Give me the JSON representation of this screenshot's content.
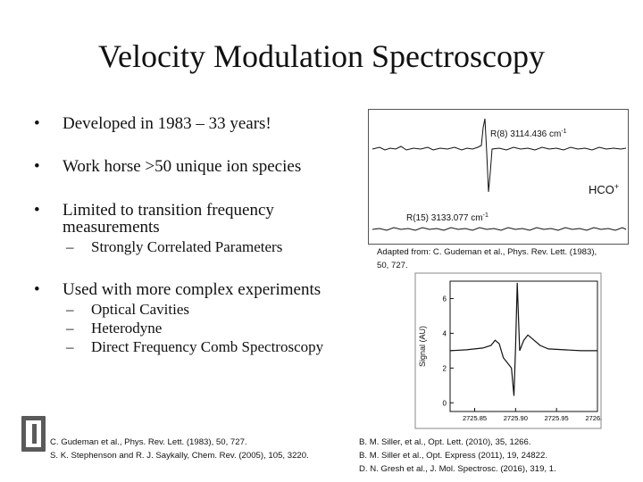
{
  "slide": {
    "title": "Velocity Modulation Spectroscopy",
    "bullets": [
      {
        "mark": "•",
        "text": "Developed in 1983 – 33 years!"
      },
      {
        "mark": "•",
        "text": "Work horse >50 unique ion species"
      },
      {
        "mark": "•",
        "line1": "Limited to transition frequency",
        "line2": "measurements"
      },
      {
        "mark": "•",
        "text": "Used with more complex experiments"
      }
    ],
    "sub_a": [
      {
        "dash": "–",
        "text": "Strongly Correlated Parameters"
      }
    ],
    "sub_b": [
      {
        "dash": "–",
        "text": "Optical Cavities"
      },
      {
        "dash": "–",
        "text": "Heterodyne"
      },
      {
        "dash": "–",
        "text": "Direct Frequency Comb Spectroscopy"
      }
    ]
  },
  "figure_top": {
    "label_upper": "R(8)  3114.436 cm",
    "label_upper_sup": "-1",
    "label_lower": "R(15)  3133.077 cm",
    "label_lower_sup": "-1",
    "species": "HCO",
    "species_sup": "+",
    "caption_line1": "Adapted from: C. Gudeman et al., Phys. Rev. Lett. (1983),",
    "caption_line2": "50, 727."
  },
  "figure_bottom": {
    "ylabel": "Signal (AU)",
    "yticks": [
      "6",
      "4",
      "2",
      "0"
    ],
    "xticks": [
      "2725.85",
      "2725.90",
      "2725.95",
      "2726.00"
    ]
  },
  "chart_data": {
    "type": "line",
    "title": "",
    "xlabel": "",
    "ylabel": "Signal (AU)",
    "xlim": [
      2725.82,
      2726.0
    ],
    "ylim": [
      -0.5,
      7
    ],
    "grid": false,
    "series": [
      {
        "x": [
          2725.82,
          2725.84,
          2725.86,
          2725.87,
          2725.875,
          2725.88,
          2725.885,
          2725.89,
          2725.895,
          2725.898,
          2725.9,
          2725.902,
          2725.905,
          2725.91,
          2725.915,
          2725.92,
          2725.93,
          2725.94,
          2725.96,
          2725.98,
          2726.0
        ],
        "y": [
          3.0,
          3.05,
          3.15,
          3.3,
          3.6,
          3.4,
          2.6,
          2.3,
          2.0,
          0.4,
          3.2,
          6.9,
          3.0,
          3.6,
          3.9,
          3.7,
          3.3,
          3.1,
          3.05,
          3.0,
          3.0
        ]
      }
    ]
  },
  "references": {
    "left": [
      "C. Gudeman et al., Phys. Rev. Lett. (1983), 50, 727.",
      "S. K. Stephenson and R. J. Saykally, Chem. Rev. (2005), 105, 3220."
    ],
    "right": [
      "B. M. Siller, et al., Opt. Lett. (2010), 35, 1266.",
      "B. M. Siller et al., Opt. Express (2011), 19, 24822.",
      "D. N. Gresh et al., J. Mol. Spectrosc. (2016), 319, 1."
    ]
  },
  "logo": {
    "letter": "I"
  }
}
